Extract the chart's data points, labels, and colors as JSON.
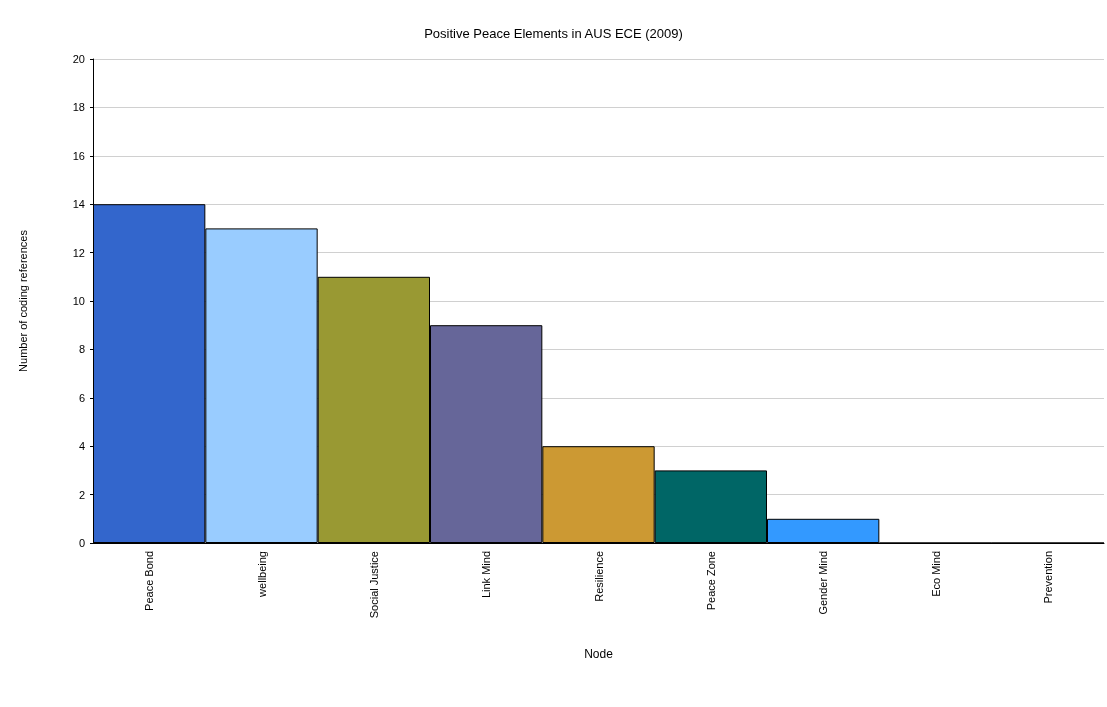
{
  "chart_data": {
    "type": "bar",
    "title": "Positive Peace Elements in AUS ECE (2009)",
    "xlabel": "Node",
    "ylabel": "Number of coding references",
    "categories": [
      "Peace Bond",
      "wellbeing",
      "Social Justice",
      "Link Mind",
      "Resilience",
      "Peace Zone",
      "Gender Mind",
      "Eco Mind",
      "Prevention"
    ],
    "values": [
      14,
      13,
      11,
      9,
      4,
      3,
      1,
      0,
      0
    ],
    "colors": [
      "#3366cc",
      "#99ccff",
      "#999933",
      "#666699",
      "#cc9933",
      "#006666",
      "#3399ff",
      "#993366",
      "#cccc99"
    ],
    "ylim": [
      0,
      20
    ],
    "yticks": [
      0,
      2,
      4,
      6,
      8,
      10,
      12,
      14,
      16,
      18,
      20
    ],
    "grid": "y"
  }
}
